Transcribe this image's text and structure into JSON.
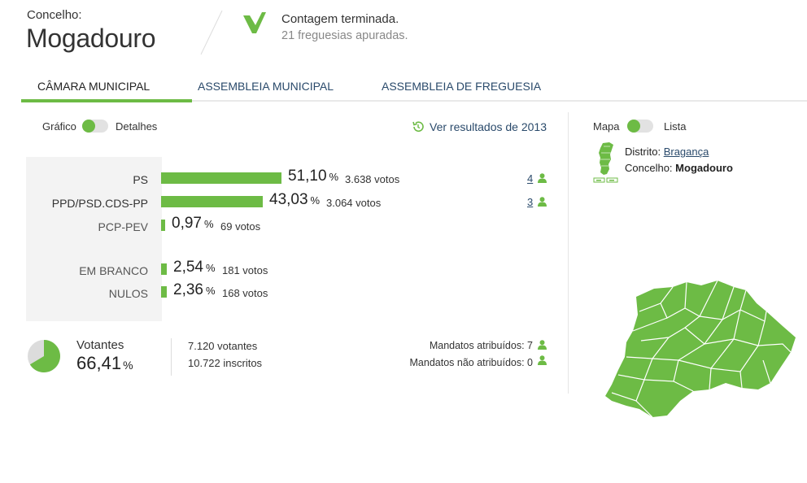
{
  "header": {
    "label": "Concelho:",
    "title": "Mogadouro",
    "status_title": "Contagem terminada.",
    "status_sub": "21 freguesias apuradas."
  },
  "tabs": [
    {
      "label": "CÂMARA MUNICIPAL",
      "active": true
    },
    {
      "label": "ASSEMBLEIA MUNICIPAL",
      "active": false
    },
    {
      "label": "ASSEMBLEIA DE FREGUESIA",
      "active": false
    }
  ],
  "view_toggle": {
    "left": "Gráfico",
    "right": "Detalhes"
  },
  "history_link": "Ver resultados de 2013",
  "results": [
    {
      "name": "PS",
      "pct": "51,10",
      "votes": "3.638 votos",
      "mandates": "4",
      "share": 0.511
    },
    {
      "name": "PPD/PSD.CDS-PP",
      "pct": "43,03",
      "votes": "3.064 votos",
      "mandates": "3",
      "share": 0.4303
    },
    {
      "name": "PCP-PEV",
      "pct": "0,97",
      "votes": "69 votos",
      "mandates": "",
      "share": 0.0097
    },
    {
      "name": "EM BRANCO",
      "pct": "2,54",
      "votes": "181 votos",
      "mandates": "",
      "share": 0.0254
    },
    {
      "name": "NULOS",
      "pct": "2,36",
      "votes": "168 votos",
      "mandates": "",
      "share": 0.0236
    }
  ],
  "pct_symbol": "%",
  "turnout": {
    "label": "Votantes",
    "pct": "66,41",
    "voters": "7.120 votantes",
    "registered": "10.722 inscritos",
    "fraction": 0.6641
  },
  "mandates_summary": {
    "assigned": "Mandatos atribuídos: 7",
    "unassigned": "Mandatos não atribuídos: 0"
  },
  "map_toggle": {
    "left": "Mapa",
    "right": "Lista"
  },
  "location": {
    "district_label": "Distrito:",
    "district": "Bragança",
    "council_label": "Concelho:",
    "council": "Mogadouro"
  },
  "colors": {
    "accent": "#6dbb45",
    "link": "#2a4a6b",
    "map": "#6dbb45"
  }
}
